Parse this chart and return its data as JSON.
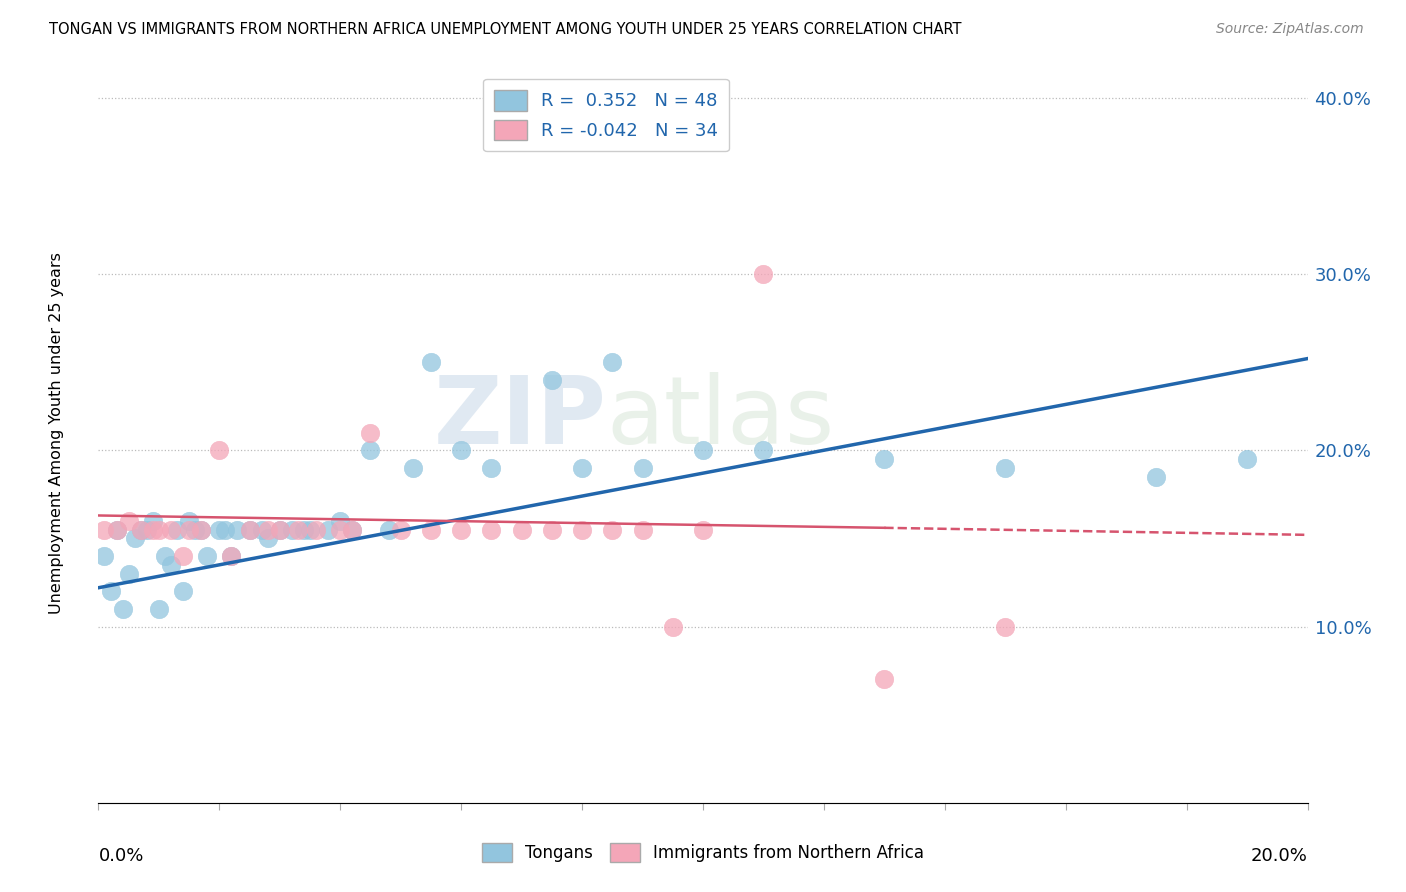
{
  "title": "TONGAN VS IMMIGRANTS FROM NORTHERN AFRICA UNEMPLOYMENT AMONG YOUTH UNDER 25 YEARS CORRELATION CHART",
  "source": "Source: ZipAtlas.com",
  "ylabel": "Unemployment Among Youth under 25 years",
  "xlim": [
    0.0,
    0.2
  ],
  "ylim": [
    0.0,
    0.42
  ],
  "yticks": [
    0.1,
    0.2,
    0.3,
    0.4
  ],
  "ytick_labels": [
    "10.0%",
    "20.0%",
    "30.0%",
    "40.0%"
  ],
  "legend_r_blue": "R =  0.352",
  "legend_n_blue": "N = 48",
  "legend_r_pink": "R = -0.042",
  "legend_n_pink": "N = 34",
  "blue_color": "#92c5de",
  "pink_color": "#f4a6b8",
  "blue_line_color": "#2166ac",
  "pink_line_color": "#d6546e",
  "watermark_left": "ZIP",
  "watermark_right": "atlas",
  "tongans_x": [
    0.001,
    0.002,
    0.003,
    0.004,
    0.005,
    0.006,
    0.007,
    0.008,
    0.009,
    0.01,
    0.011,
    0.012,
    0.013,
    0.014,
    0.015,
    0.016,
    0.017,
    0.018,
    0.02,
    0.021,
    0.022,
    0.023,
    0.025,
    0.027,
    0.028,
    0.03,
    0.032,
    0.034,
    0.035,
    0.038,
    0.04,
    0.042,
    0.045,
    0.048,
    0.052,
    0.055,
    0.06,
    0.065,
    0.075,
    0.08,
    0.085,
    0.09,
    0.1,
    0.11,
    0.13,
    0.15,
    0.175,
    0.19
  ],
  "tongans_y": [
    0.14,
    0.12,
    0.155,
    0.11,
    0.13,
    0.15,
    0.155,
    0.155,
    0.16,
    0.11,
    0.14,
    0.135,
    0.155,
    0.12,
    0.16,
    0.155,
    0.155,
    0.14,
    0.155,
    0.155,
    0.14,
    0.155,
    0.155,
    0.155,
    0.15,
    0.155,
    0.155,
    0.155,
    0.155,
    0.155,
    0.16,
    0.155,
    0.2,
    0.155,
    0.19,
    0.25,
    0.2,
    0.19,
    0.24,
    0.19,
    0.25,
    0.19,
    0.2,
    0.2,
    0.195,
    0.19,
    0.185,
    0.195
  ],
  "africa_x": [
    0.001,
    0.003,
    0.005,
    0.007,
    0.009,
    0.01,
    0.012,
    0.014,
    0.015,
    0.017,
    0.02,
    0.022,
    0.025,
    0.028,
    0.03,
    0.033,
    0.036,
    0.04,
    0.042,
    0.045,
    0.05,
    0.055,
    0.06,
    0.065,
    0.07,
    0.075,
    0.08,
    0.085,
    0.09,
    0.095,
    0.1,
    0.11,
    0.13,
    0.15
  ],
  "africa_y": [
    0.155,
    0.155,
    0.16,
    0.155,
    0.155,
    0.155,
    0.155,
    0.14,
    0.155,
    0.155,
    0.2,
    0.14,
    0.155,
    0.155,
    0.155,
    0.155,
    0.155,
    0.155,
    0.155,
    0.21,
    0.155,
    0.155,
    0.155,
    0.155,
    0.155,
    0.155,
    0.155,
    0.155,
    0.155,
    0.1,
    0.155,
    0.3,
    0.07,
    0.1
  ]
}
